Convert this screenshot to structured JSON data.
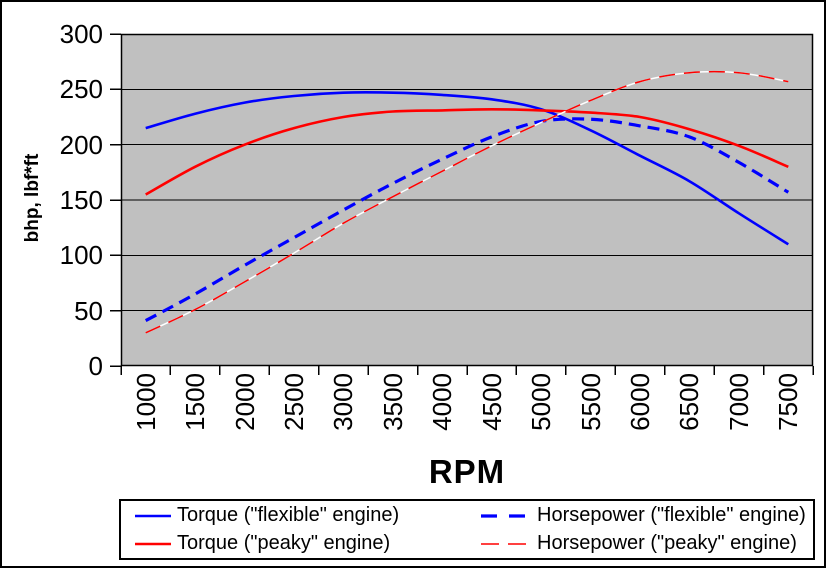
{
  "chart_data": {
    "type": "line",
    "title": "",
    "xlabel": "RPM",
    "ylabel": "bhp, lbf*ft",
    "x": [
      1000,
      1500,
      2000,
      2500,
      3000,
      3500,
      4000,
      4500,
      5000,
      5500,
      6000,
      6500,
      7000,
      7500
    ],
    "ylim": [
      0,
      300
    ],
    "yticks": [
      0,
      50,
      100,
      150,
      200,
      250,
      300
    ],
    "grid": true,
    "plot_bg_color": "#C0C0C0",
    "grid_color": "#000000",
    "axis_color": "#000000",
    "dash_gap_color": "#FFFFFF",
    "legend_position": "bottom",
    "legend_columns": 2,
    "series": [
      {
        "name": "Torque (\"flexible\" engine)",
        "color": "#0000FF",
        "line_style": "solid",
        "values": [
          215,
          228,
          238,
          244,
          247,
          247,
          245,
          241,
          232,
          213,
          190,
          167,
          138,
          110
        ]
      },
      {
        "name": "Horsepower (\"flexible\" engine)",
        "color": "#0000FF",
        "line_style": "dashed",
        "values": [
          41,
          65,
          91,
          116,
          141,
          165,
          187,
          207,
          221,
          223,
          217,
          207,
          184,
          157
        ]
      },
      {
        "name": "Torque (\"peaky\" engine)",
        "color": "#FF0000",
        "line_style": "solid",
        "values": [
          155,
          180,
          200,
          215,
          225,
          230,
          231,
          232,
          231,
          229,
          225,
          214,
          199,
          180
        ]
      },
      {
        "name": "Horsepower (\"peaky\" engine)",
        "color": "#FF0000",
        "line_style": "dashed-thin",
        "values": [
          30,
          51,
          76,
          102,
          129,
          153,
          176,
          199,
          220,
          240,
          257,
          265,
          265,
          257
        ]
      }
    ]
  }
}
